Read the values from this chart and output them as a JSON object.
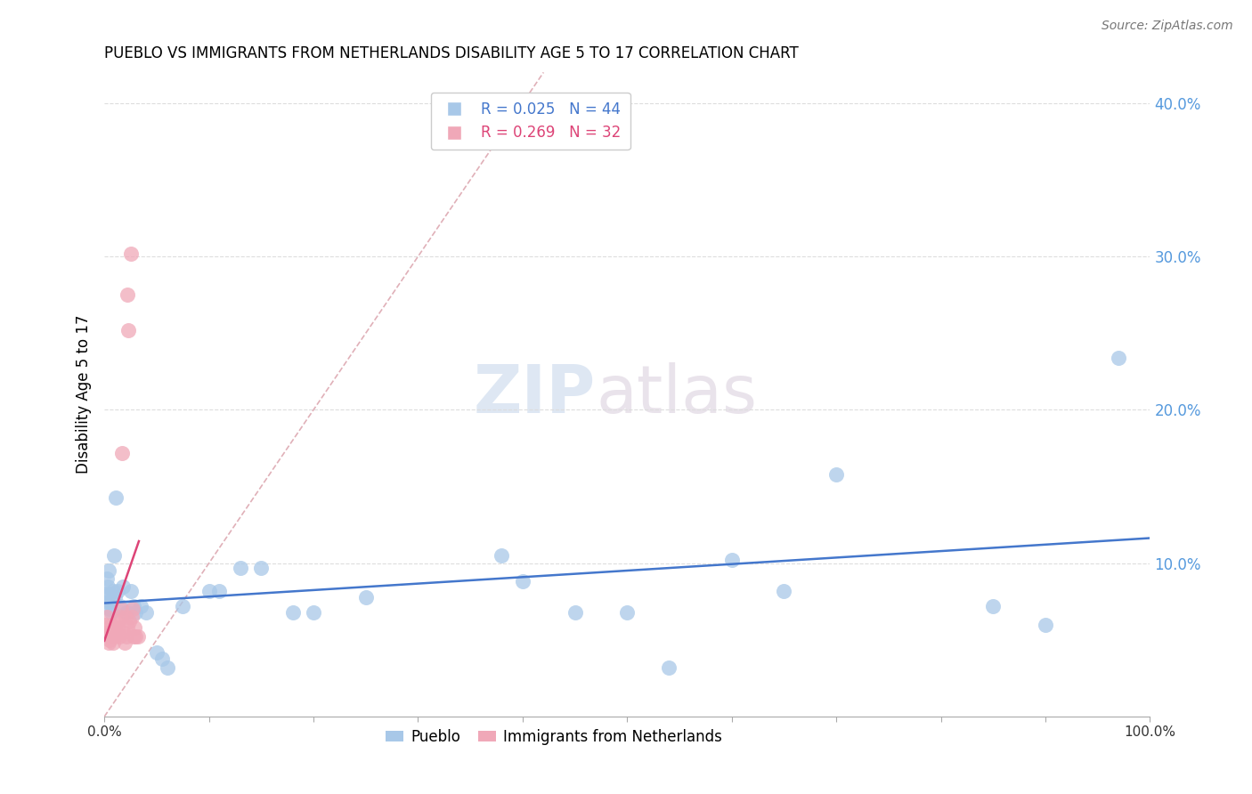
{
  "title": "PUEBLO VS IMMIGRANTS FROM NETHERLANDS DISABILITY AGE 5 TO 17 CORRELATION CHART",
  "source": "Source: ZipAtlas.com",
  "ylabel": "Disability Age 5 to 17",
  "r_pueblo": 0.025,
  "n_pueblo": 44,
  "r_netherlands": 0.269,
  "n_netherlands": 32,
  "color_pueblo": "#a8c8e8",
  "color_netherlands": "#f0a8b8",
  "trend_color_pueblo": "#4477cc",
  "trend_color_netherlands": "#dd4477",
  "diag_color": "#e0b0b8",
  "pueblo_x": [
    0.001,
    0.002,
    0.003,
    0.003,
    0.004,
    0.005,
    0.005,
    0.006,
    0.007,
    0.008,
    0.009,
    0.01,
    0.011,
    0.013,
    0.015,
    0.018,
    0.021,
    0.025,
    0.028,
    0.03,
    0.035,
    0.04,
    0.05,
    0.055,
    0.06,
    0.075,
    0.1,
    0.11,
    0.13,
    0.15,
    0.18,
    0.2,
    0.25,
    0.38,
    0.4,
    0.45,
    0.5,
    0.54,
    0.6,
    0.65,
    0.7,
    0.85,
    0.9,
    0.97
  ],
  "pueblo_y": [
    0.08,
    0.09,
    0.075,
    0.085,
    0.095,
    0.07,
    0.08,
    0.075,
    0.068,
    0.082,
    0.105,
    0.078,
    0.143,
    0.082,
    0.072,
    0.085,
    0.068,
    0.082,
    0.072,
    0.068,
    0.072,
    0.068,
    0.042,
    0.038,
    0.032,
    0.072,
    0.082,
    0.082,
    0.097,
    0.097,
    0.068,
    0.068,
    0.078,
    0.105,
    0.088,
    0.068,
    0.068,
    0.032,
    0.102,
    0.082,
    0.158,
    0.072,
    0.06,
    0.234
  ],
  "netherlands_x": [
    0.001,
    0.002,
    0.003,
    0.004,
    0.005,
    0.006,
    0.007,
    0.008,
    0.009,
    0.01,
    0.011,
    0.012,
    0.013,
    0.014,
    0.015,
    0.016,
    0.017,
    0.018,
    0.019,
    0.02,
    0.021,
    0.022,
    0.022,
    0.023,
    0.024,
    0.025,
    0.026,
    0.027,
    0.028,
    0.029,
    0.03,
    0.032
  ],
  "netherlands_y": [
    0.06,
    0.065,
    0.055,
    0.048,
    0.05,
    0.055,
    0.06,
    0.048,
    0.052,
    0.058,
    0.055,
    0.062,
    0.058,
    0.052,
    0.065,
    0.07,
    0.172,
    0.055,
    0.048,
    0.065,
    0.052,
    0.058,
    0.275,
    0.252,
    0.062,
    0.302,
    0.065,
    0.07,
    0.052,
    0.058,
    0.052,
    0.052
  ],
  "watermark_zip": "ZIP",
  "watermark_atlas": "atlas",
  "xlim": [
    0.0,
    1.0
  ],
  "ylim": [
    0.0,
    0.42
  ],
  "yticks": [
    0.1,
    0.2,
    0.3,
    0.4
  ],
  "xtick_positions": [
    0.0,
    0.1,
    0.2,
    0.3,
    0.4,
    0.5,
    0.6,
    0.7,
    0.8,
    0.9,
    1.0
  ]
}
